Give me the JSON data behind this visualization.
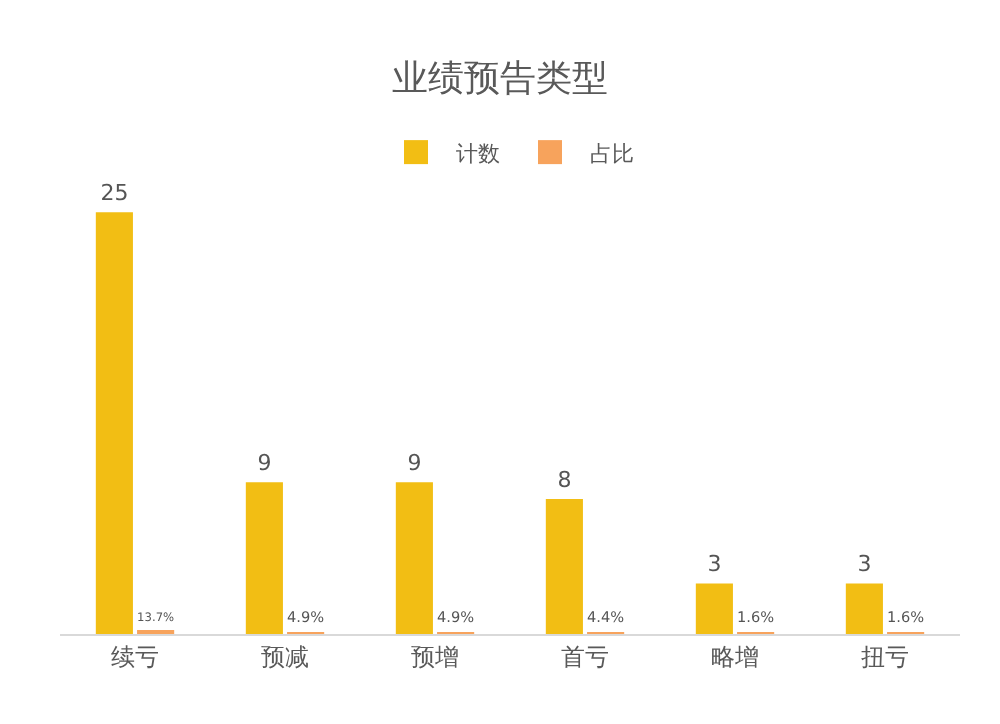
{
  "chart_data": {
    "type": "bar",
    "title": "业绩预告类型",
    "categories": [
      "续亏",
      "预减",
      "预增",
      "首亏",
      "略增",
      "扭亏"
    ],
    "series": [
      {
        "name": "计数",
        "color": "#f2be14",
        "values": [
          25,
          9,
          9,
          8,
          3,
          3
        ],
        "value_labels": [
          "25",
          "9",
          "9",
          "8",
          "3",
          "3"
        ]
      },
      {
        "name": "占比",
        "color": "#f7a35c",
        "values": [
          0.137,
          0.049,
          0.049,
          0.044,
          0.016,
          0.016
        ],
        "value_labels": [
          "13.7%",
          "4.9%",
          "4.9%",
          "4.4%",
          "1.6%",
          "1.6%"
        ]
      }
    ],
    "legend": "top",
    "tick_labels": "x"
  }
}
